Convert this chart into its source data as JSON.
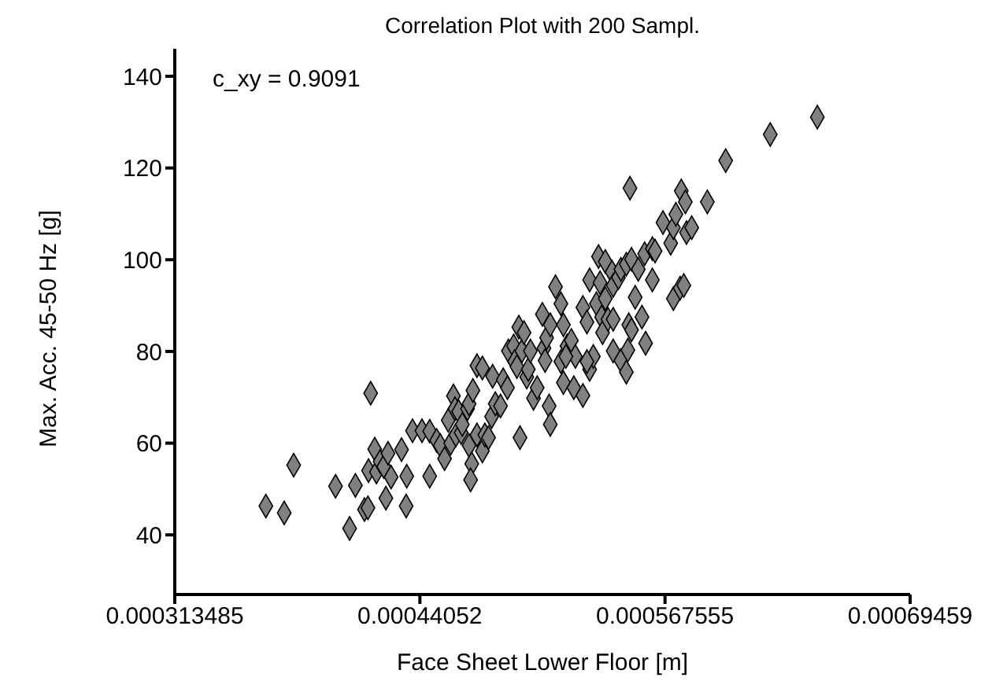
{
  "chart_data": {
    "type": "scatter",
    "title": "Correlation Plot with  200 Sampl.",
    "xlabel": "Face Sheet Lower Floor [m]",
    "ylabel": "Max. Acc. 45-50 Hz [g]",
    "annotations": [
      "c_xy =  0.9091"
    ],
    "xlim": [
      0.000313485,
      0.00069459
    ],
    "xticks": [
      0.000313485,
      0.00044052,
      0.000567555,
      0.00069459
    ],
    "ylim": [
      27,
      146
    ],
    "yticks": [
      40,
      60,
      80,
      100,
      120,
      140
    ],
    "grid": false,
    "legend": false,
    "marker": "diamond",
    "series": [
      {
        "color": "#808080",
        "x": [
          0.0003607,
          0.0003702,
          0.0003751,
          0.0003968,
          0.0004041,
          0.0004071,
          0.0004118,
          0.0004136,
          0.000415,
          0.0004171,
          0.0004139,
          0.000418,
          0.0004199,
          0.0004218,
          0.000424,
          0.0004229,
          0.0004256,
          0.000431,
          0.0004334,
          0.0004337,
          0.0004367,
          0.0004416,
          0.0004456,
          0.0004456,
          0.0004492,
          0.0004511,
          0.0004533,
          0.0004552,
          0.0004565,
          0.0004579,
          0.0004587,
          0.0004606,
          0.0004592,
          0.0004619,
          0.0004625,
          0.0004652,
          0.000466,
          0.0004674,
          0.0004668,
          0.000466,
          0.000468,
          0.0004701,
          0.0004729,
          0.0004701,
          0.0004729,
          0.0004742,
          0.0004761,
          0.0004777,
          0.0004782,
          0.0004796,
          0.0004823,
          0.0004837,
          0.0004859,
          0.0004864,
          0.0004891,
          0.0004896,
          0.0004908,
          0.0004918,
          0.0004924,
          0.0004934,
          0.0004945,
          0.0004959,
          0.0004967,
          0.0004978,
          0.0004994,
          0.0005013,
          0.000504,
          0.0005048,
          0.0005054,
          0.0005062,
          0.0005075,
          0.0005081,
          0.0005108,
          0.0005136,
          0.0005136,
          0.0005149,
          0.0005081,
          0.0005149,
          0.0005168,
          0.000519,
          0.0005211,
          0.0005203,
          0.000525,
          0.000525,
          0.0005285,
          0.0005339,
          0.0005285,
          0.0005304,
          0.0005271,
          0.000532,
          0.0005347,
          0.0005366,
          0.0005352,
          0.0005331,
          0.0005366,
          0.0005401,
          0.0005407,
          0.0005434,
          0.0005447,
          0.0005475,
          0.0005502,
          0.0005537,
          0.000557,
          0.000561,
          0.0005624,
          0.0005665,
          0.0005705,
          0.0005719,
          0.0005732,
          0.000576,
          0.0005781,
          0.0005787,
          0.0005814,
          0.0005895,
          0.0005494,
          0.000561,
          0.0005521,
          0.0005556,
          0.0005575,
          0.0005488,
          0.0005502,
          0.0005407,
          0.0005447,
          0.0005483,
          0.0005475,
          0.0005719,
          0.0005754,
          0.0005773,
          0.000599,
          0.0006221,
          0.0006465,
          0.000538,
          0.0005407,
          0.0005162,
          0.0005271
        ],
        "values": [
          46.3,
          44.8,
          55.2,
          50.6,
          41.4,
          50.8,
          45.5,
          45.9,
          70.9,
          58.7,
          54,
          53.7,
          56,
          54.9,
          57.8,
          48,
          52.6,
          58.6,
          46.3,
          52.8,
          62.7,
          62.7,
          62.6,
          52.8,
          60.6,
          59.5,
          56.6,
          65,
          60,
          70.3,
          67.5,
          66.9,
          61.8,
          62.3,
          64.1,
          67.5,
          59.5,
          55.5,
          52,
          68.6,
          71.5,
          76.9,
          76.4,
          61.8,
          58.3,
          61.8,
          61.2,
          65.8,
          74.6,
          68.6,
          68.1,
          73.8,
          72.1,
          80.1,
          81.2,
          77.8,
          76.7,
          85.3,
          61.2,
          80.1,
          84.1,
          74.4,
          76.1,
          80.1,
          69.8,
          72.1,
          88.1,
          80.7,
          78,
          83,
          68.1,
          64.1,
          94.1,
          90.4,
          77.8,
          73.2,
          85.8,
          85.8,
          81.2,
          82.4,
          78.9,
          72.1,
          70.4,
          89.6,
          95.6,
          95,
          76.1,
          78.9,
          86.4,
          90.4,
          87.5,
          91.5,
          84.1,
          100.7,
          99.6,
          97.3,
          94.4,
          96.1,
          97.9,
          99,
          100.1,
          97.9,
          101.3,
          102.4,
          101.9,
          108.1,
          103.6,
          107,
          109.9,
          115,
          112.6,
          105.9,
          107,
          112.6,
          115.6,
          95.6,
          91.8,
          87.5,
          81.8,
          85.8,
          84.7,
          80.1,
          78,
          80.3,
          75.5,
          91.5,
          93.8,
          94.4,
          121.6,
          127.3,
          131.1,
          87,
          87,
          78.9,
          77.8
        ]
      }
    ]
  }
}
